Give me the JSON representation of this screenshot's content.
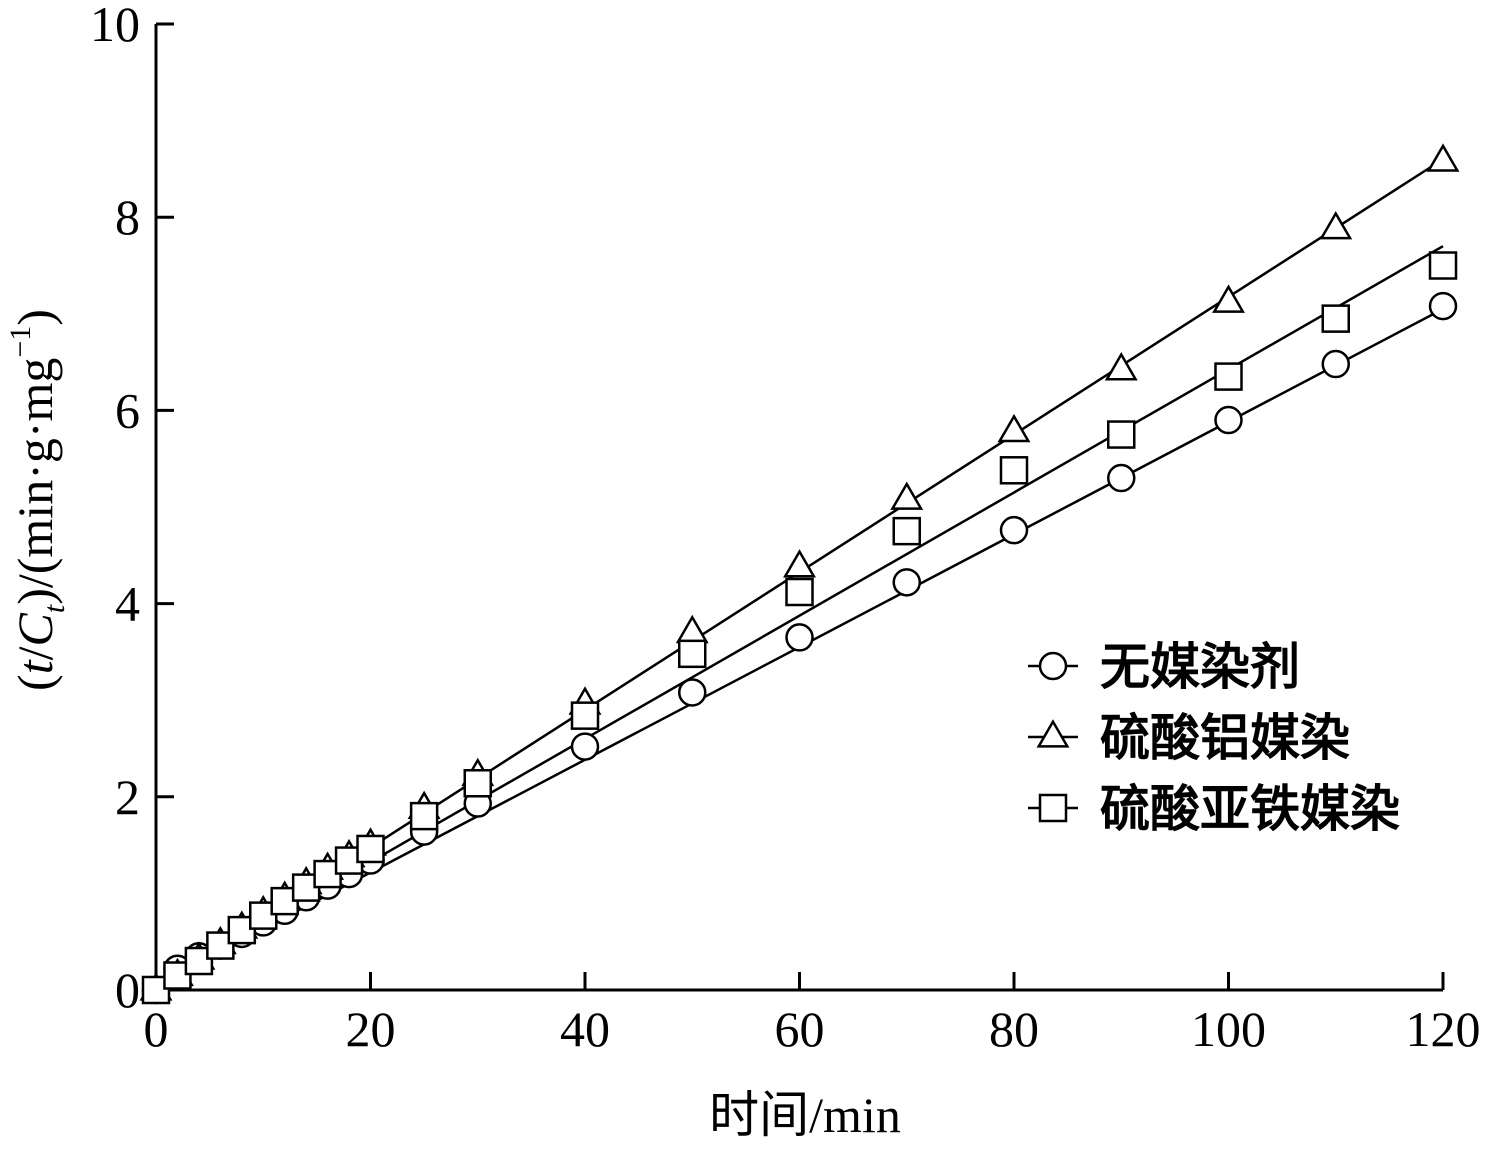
{
  "chart_data": {
    "type": "scatter",
    "xlabel": "时间/min",
    "ylabel": {
      "open": "(",
      "t": "t",
      "slash": "/",
      "C": "C",
      "sub": "t",
      "mid": ")/(min·g·mg",
      "sup": "−1",
      "close": ")"
    },
    "xlim": [
      0,
      120
    ],
    "ylim": [
      0,
      10
    ],
    "xticks": [
      "0",
      "20",
      "40",
      "60",
      "80",
      "100",
      "120"
    ],
    "yticks": [
      "0",
      "2",
      "4",
      "6",
      "8",
      "10"
    ],
    "grid": false,
    "legend_position": "right",
    "series": [
      {
        "name": "无媒染剂",
        "marker": "circle",
        "x": [
          0,
          2,
          4,
          6,
          8,
          10,
          12,
          14,
          16,
          18,
          20,
          25,
          30,
          40,
          50,
          60,
          70,
          80,
          90,
          100,
          110,
          120
        ],
        "y": [
          0,
          0.22,
          0.35,
          0.46,
          0.58,
          0.7,
          0.82,
          0.96,
          1.08,
          1.2,
          1.34,
          1.64,
          1.93,
          2.52,
          3.08,
          3.65,
          4.22,
          4.76,
          5.3,
          5.9,
          6.48,
          7.08
        ],
        "fit": [
          [
            0,
            0.05
          ],
          [
            120,
            7.05
          ]
        ]
      },
      {
        "name": "硫酸铝媒染",
        "marker": "triangle",
        "x": [
          0,
          2,
          4,
          6,
          8,
          10,
          12,
          14,
          16,
          18,
          20,
          25,
          30,
          40,
          50,
          60,
          70,
          80,
          90,
          100,
          110,
          120
        ],
        "y": [
          0,
          0.15,
          0.32,
          0.48,
          0.64,
          0.8,
          0.95,
          1.1,
          1.25,
          1.38,
          1.5,
          1.88,
          2.22,
          2.96,
          3.7,
          4.38,
          5.08,
          5.78,
          6.42,
          7.12,
          7.88,
          8.58
        ],
        "fit": [
          [
            0,
            0.05
          ],
          [
            120,
            8.6
          ]
        ]
      },
      {
        "name": "硫酸亚铁媒染",
        "marker": "square",
        "x": [
          0,
          2,
          4,
          6,
          8,
          10,
          12,
          14,
          16,
          18,
          20,
          25,
          30,
          40,
          50,
          60,
          70,
          80,
          90,
          100,
          110,
          120
        ],
        "y": [
          0,
          0.15,
          0.3,
          0.46,
          0.62,
          0.77,
          0.92,
          1.06,
          1.2,
          1.34,
          1.46,
          1.8,
          2.14,
          2.84,
          3.48,
          4.12,
          4.75,
          5.38,
          5.75,
          6.35,
          6.95,
          7.5
        ],
        "fit": [
          [
            0,
            0.05
          ],
          [
            120,
            7.7
          ]
        ]
      }
    ]
  }
}
